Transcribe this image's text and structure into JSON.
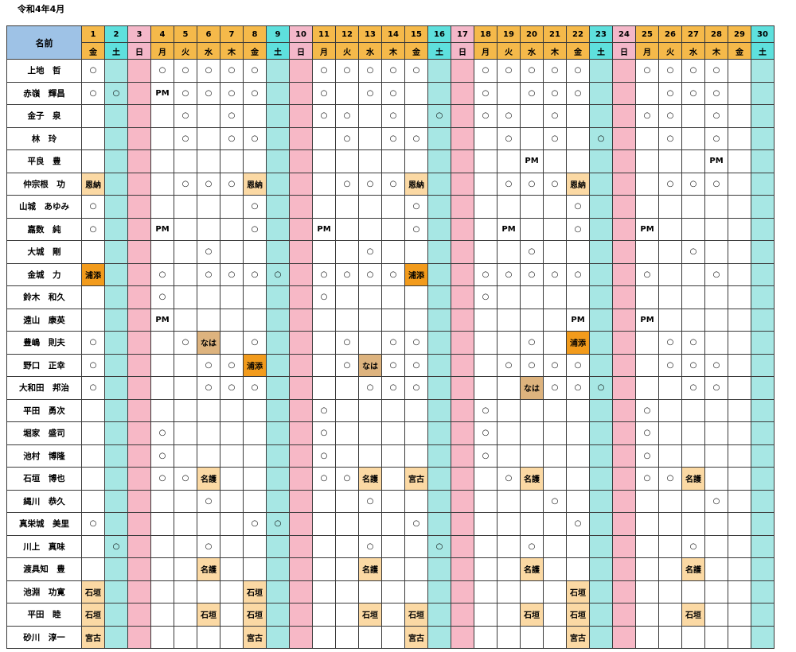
{
  "page_title": "令和4年4月",
  "header": {
    "name_label": "名前"
  },
  "days": [
    {
      "d": "1",
      "w": "金"
    },
    {
      "d": "2",
      "w": "土"
    },
    {
      "d": "3",
      "w": "日"
    },
    {
      "d": "4",
      "w": "月"
    },
    {
      "d": "5",
      "w": "火"
    },
    {
      "d": "6",
      "w": "水"
    },
    {
      "d": "7",
      "w": "木"
    },
    {
      "d": "8",
      "w": "金"
    },
    {
      "d": "9",
      "w": "土"
    },
    {
      "d": "10",
      "w": "日"
    },
    {
      "d": "11",
      "w": "月"
    },
    {
      "d": "12",
      "w": "火"
    },
    {
      "d": "13",
      "w": "水"
    },
    {
      "d": "14",
      "w": "木"
    },
    {
      "d": "15",
      "w": "金"
    },
    {
      "d": "16",
      "w": "土"
    },
    {
      "d": "17",
      "w": "日"
    },
    {
      "d": "18",
      "w": "月"
    },
    {
      "d": "19",
      "w": "火"
    },
    {
      "d": "20",
      "w": "水"
    },
    {
      "d": "21",
      "w": "木"
    },
    {
      "d": "22",
      "w": "金"
    },
    {
      "d": "23",
      "w": "土"
    },
    {
      "d": "24",
      "w": "日"
    },
    {
      "d": "25",
      "w": "月"
    },
    {
      "d": "26",
      "w": "火"
    },
    {
      "d": "27",
      "w": "水"
    },
    {
      "d": "28",
      "w": "木"
    },
    {
      "d": "29",
      "w": "金"
    },
    {
      "d": "30",
      "w": "土"
    }
  ],
  "colors": {
    "header_weekday": "#f5b94a",
    "header_saturday": "#5ee0dd",
    "header_sunday": "#f4b7c9",
    "col_saturday": "#a7e7e4",
    "col_sunday": "#f7b8c6",
    "event_cell": "#fbd9a4",
    "highlight_cell": "#f29b1c",
    "na_cell": "#ddb37e",
    "name_header": "#9ec2e6"
  },
  "rows": [
    {
      "name": "上地　哲",
      "cells": {
        "1": "○",
        "4": "○",
        "5": "○",
        "6": "○",
        "7": "○",
        "8": "○",
        "11": "○",
        "12": "○",
        "13": "○",
        "14": "○",
        "15": "○",
        "18": "○",
        "19": "○",
        "20": "○",
        "21": "○",
        "22": "○",
        "25": "○",
        "26": "○",
        "27": "○",
        "28": "○"
      }
    },
    {
      "name": "赤嶺　輝昌",
      "cells": {
        "1": "○",
        "2": "○",
        "4": "PM",
        "5": "○",
        "6": "○",
        "7": "○",
        "8": "○",
        "11": "○",
        "13": "○",
        "14": "○",
        "18": "○",
        "20": "○",
        "21": "○",
        "22": "○",
        "26": "○",
        "27": "○",
        "28": "○"
      }
    },
    {
      "name": "金子　泉",
      "cells": {
        "5": "○",
        "7": "○",
        "11": "○",
        "12": "○",
        "14": "○",
        "16": "○",
        "18": "○",
        "19": "○",
        "21": "○",
        "25": "○",
        "26": "○",
        "28": "○"
      }
    },
    {
      "name": "林　玲",
      "cells": {
        "5": "○",
        "7": "○",
        "8": "○",
        "12": "○",
        "14": "○",
        "15": "○",
        "19": "○",
        "21": "○",
        "23": "○",
        "26": "○",
        "28": "○"
      }
    },
    {
      "name": "平良　豊",
      "cells": {
        "20": "PM",
        "28": "PM"
      }
    },
    {
      "name": "仲宗根　功",
      "cells": {
        "1": {
          "t": "恩納",
          "c": "ev"
        },
        "5": "○",
        "6": "○",
        "7": "○",
        "8": {
          "t": "恩納",
          "c": "ev"
        },
        "12": "○",
        "13": "○",
        "14": "○",
        "15": {
          "t": "恩納",
          "c": "ev"
        },
        "19": "○",
        "20": "○",
        "21": "○",
        "22": {
          "t": "恩納",
          "c": "ev"
        },
        "26": "○",
        "27": "○",
        "28": "○"
      }
    },
    {
      "name": "山城　あゆみ",
      "cells": {
        "1": "○",
        "8": "○",
        "15": "○",
        "22": "○"
      }
    },
    {
      "name": "嘉数　純",
      "cells": {
        "1": "○",
        "4": "PM",
        "8": "○",
        "11": "PM",
        "15": "○",
        "19": "PM",
        "22": "○",
        "25": "PM"
      }
    },
    {
      "name": "大城　剛",
      "cells": {
        "6": "○",
        "13": "○",
        "20": "○",
        "27": "○"
      }
    },
    {
      "name": "金城　力",
      "cells": {
        "1": {
          "t": "浦添",
          "c": "hl"
        },
        "4": "○",
        "6": "○",
        "7": "○",
        "8": "○",
        "9": "○",
        "11": "○",
        "12": "○",
        "13": "○",
        "14": "○",
        "15": {
          "t": "浦添",
          "c": "hl"
        },
        "18": "○",
        "19": "○",
        "20": "○",
        "21": "○",
        "22": "○",
        "25": "○",
        "28": "○"
      }
    },
    {
      "name": "鈴木　和久",
      "cells": {
        "4": "○",
        "11": "○",
        "18": "○"
      }
    },
    {
      "name": "遠山　康英",
      "cells": {
        "4": "PM",
        "22": "PM",
        "25": "PM"
      }
    },
    {
      "name": "豊嶋　則夫",
      "cells": {
        "1": "○",
        "5": "○",
        "6": {
          "t": "なは",
          "c": "na"
        },
        "8": "○",
        "12": "○",
        "14": "○",
        "15": "○",
        "20": "○",
        "22": {
          "t": "浦添",
          "c": "hl"
        },
        "26": "○",
        "27": "○"
      }
    },
    {
      "name": "野口　正幸",
      "cells": {
        "1": "○",
        "6": "○",
        "7": "○",
        "8": {
          "t": "浦添",
          "c": "hl"
        },
        "12": "○",
        "13": {
          "t": "なは",
          "c": "na"
        },
        "14": "○",
        "15": "○",
        "19": "○",
        "20": "○",
        "21": "○",
        "22": "○",
        "26": "○",
        "27": "○",
        "28": "○"
      }
    },
    {
      "name": "大和田　邦治",
      "cells": {
        "1": "○",
        "6": "○",
        "7": "○",
        "8": "○",
        "13": "○",
        "14": "○",
        "15": "○",
        "20": {
          "t": "なは",
          "c": "na"
        },
        "21": "○",
        "22": "○",
        "23": "○",
        "27": "○",
        "28": "○"
      }
    },
    {
      "name": "平田　勇次",
      "cells": {
        "11": "○",
        "18": "○",
        "25": "○"
      }
    },
    {
      "name": "堀家　盛司",
      "cells": {
        "4": "○",
        "11": "○",
        "18": "○",
        "25": "○"
      }
    },
    {
      "name": "池村　博隆",
      "cells": {
        "4": "○",
        "11": "○",
        "18": "○",
        "25": "○"
      }
    },
    {
      "name": "石垣　博也",
      "cells": {
        "4": "○",
        "5": "○",
        "6": {
          "t": "名護",
          "c": "ev"
        },
        "11": "○",
        "12": "○",
        "13": {
          "t": "名護",
          "c": "ev"
        },
        "15": {
          "t": "宮古",
          "c": "ev"
        },
        "19": "○",
        "20": {
          "t": "名護",
          "c": "ev"
        },
        "25": "○",
        "26": "○",
        "27": {
          "t": "名護",
          "c": "ev"
        }
      }
    },
    {
      "name": "縄川　恭久",
      "cells": {
        "6": "○",
        "13": "○",
        "21": "○",
        "28": "○"
      }
    },
    {
      "name": "真栄城　美里",
      "cells": {
        "1": "○",
        "8": "○",
        "9": "○",
        "15": "○",
        "22": "○"
      }
    },
    {
      "name": "川上　真味",
      "cells": {
        "2": "○",
        "6": "○",
        "13": "○",
        "16": "○",
        "20": "○",
        "27": "○"
      }
    },
    {
      "name": "渡具知　豊",
      "cells": {
        "6": {
          "t": "名護",
          "c": "ev"
        },
        "13": {
          "t": "名護",
          "c": "ev"
        },
        "20": {
          "t": "名護",
          "c": "ev"
        },
        "27": {
          "t": "名護",
          "c": "ev"
        }
      }
    },
    {
      "name": "池淵　功寛",
      "cells": {
        "1": {
          "t": "石垣",
          "c": "ev"
        },
        "8": {
          "t": "石垣",
          "c": "ev"
        },
        "22": {
          "t": "石垣",
          "c": "ev"
        }
      }
    },
    {
      "name": "平田　睦",
      "cells": {
        "1": {
          "t": "石垣",
          "c": "ev"
        },
        "6": {
          "t": "石垣",
          "c": "ev"
        },
        "8": {
          "t": "石垣",
          "c": "ev"
        },
        "13": {
          "t": "石垣",
          "c": "ev"
        },
        "15": {
          "t": "石垣",
          "c": "ev"
        },
        "20": {
          "t": "石垣",
          "c": "ev"
        },
        "22": {
          "t": "石垣",
          "c": "ev"
        },
        "27": {
          "t": "石垣",
          "c": "ev"
        }
      }
    },
    {
      "name": "砂川　淳一",
      "cells": {
        "1": {
          "t": "宮古",
          "c": "ev"
        },
        "8": {
          "t": "宮古",
          "c": "ev"
        },
        "15": {
          "t": "宮古",
          "c": "ev"
        },
        "22": {
          "t": "宮古",
          "c": "ev"
        }
      }
    }
  ]
}
